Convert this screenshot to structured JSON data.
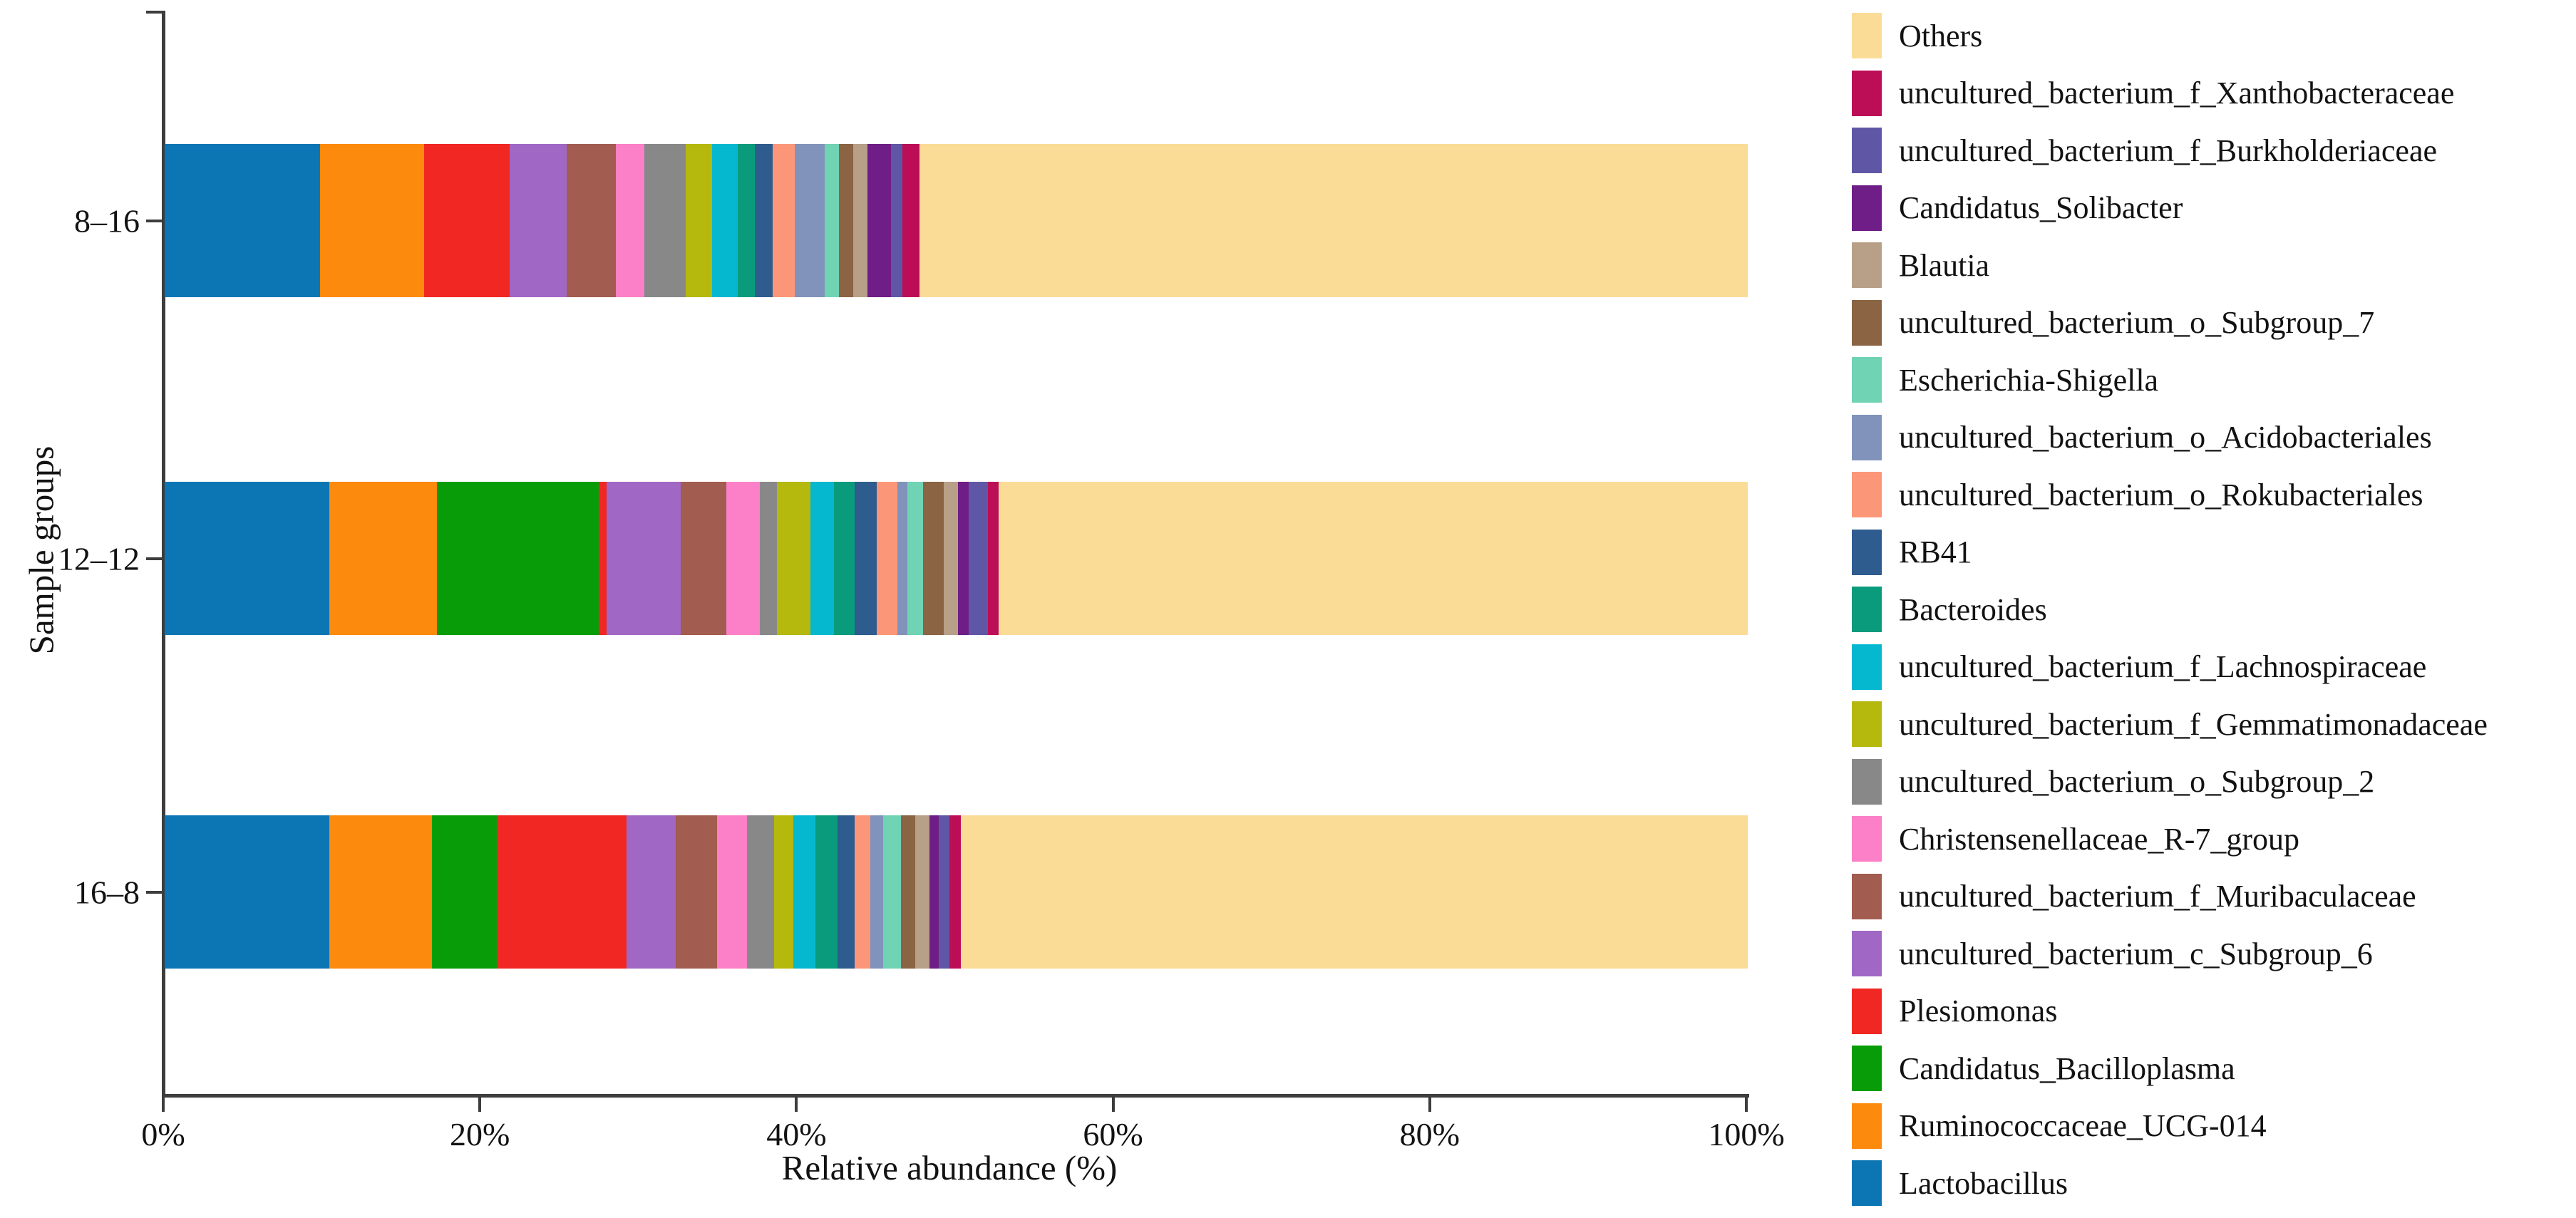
{
  "figure": {
    "background": "#ffffff",
    "text_color": "#121212",
    "axis_color": "#3d3d3d"
  },
  "chart_data": {
    "type": "bar",
    "orientation": "horizontal-stacked",
    "title": "",
    "xlabel": "Relative abundance (%)",
    "ylabel": "Sample groups",
    "xlim": [
      0,
      100
    ],
    "x_ticks": [
      "0%",
      "20%",
      "40%",
      "60%",
      "80%",
      "100%"
    ],
    "grid": false,
    "legend_position": "right",
    "legend_order": "reverse-of-stacking (Others at top, Lactobacillus at bottom)",
    "categories": [
      "8–16",
      "12–12",
      "16–8"
    ],
    "series": [
      {
        "name": "Lactobacillus",
        "color": "#0B76B3",
        "values": [
          9.8,
          10.4,
          10.4
        ]
      },
      {
        "name": "Ruminococcaceae_UCG-014",
        "color": "#FC8A0D",
        "values": [
          6.6,
          6.8,
          6.5
        ]
      },
      {
        "name": "Candidatus_Bacilloplasma",
        "color": "#089D08",
        "values": [
          0,
          10.2,
          4.1
        ]
      },
      {
        "name": "Plesiomonas",
        "color": "#F02723",
        "values": [
          5.4,
          0.5,
          8.2
        ]
      },
      {
        "name": "uncultured_bacterium_c_Subgroup_6",
        "color": "#A067C4",
        "values": [
          3.6,
          4.7,
          3.1
        ]
      },
      {
        "name": "uncultured_bacterium_f_Muribaculaceae",
        "color": "#A25C50",
        "values": [
          3.1,
          2.9,
          2.6
        ]
      },
      {
        "name": "Christensenellaceae_R-7_group",
        "color": "#FB80C8",
        "values": [
          1.8,
          2.1,
          1.9
        ]
      },
      {
        "name": "uncultured_bacterium_o_Subgroup_2",
        "color": "#888888",
        "values": [
          2.6,
          1.1,
          1.7
        ]
      },
      {
        "name": "uncultured_bacterium_f_Gemmatimonadaceae",
        "color": "#B5B80D",
        "values": [
          1.7,
          2.1,
          1.2
        ]
      },
      {
        "name": "uncultured_bacterium_f_Lachnospiraceae",
        "color": "#06B8CF",
        "values": [
          1.6,
          1.5,
          1.4
        ]
      },
      {
        "name": "Bacteroides",
        "color": "#0A9B7D",
        "values": [
          1.1,
          1.3,
          1.4
        ]
      },
      {
        "name": "RB41",
        "color": "#2E5C8F",
        "values": [
          1.1,
          1.4,
          1.1
        ]
      },
      {
        "name": "uncultured_bacterium_o_Rokubacteriales",
        "color": "#FB9778",
        "values": [
          1.4,
          1.3,
          1.0
        ]
      },
      {
        "name": "uncultured_bacterium_o_Acidobacteriales",
        "color": "#8193BB",
        "values": [
          1.9,
          0.6,
          0.8
        ]
      },
      {
        "name": "Escherichia-Shigella",
        "color": "#6FD3B4",
        "values": [
          0.9,
          1.0,
          1.1
        ]
      },
      {
        "name": "uncultured_bacterium_o_Subgroup_7",
        "color": "#8A6443",
        "values": [
          0.9,
          1.3,
          0.9
        ]
      },
      {
        "name": "Blautia",
        "color": "#B7A087",
        "values": [
          0.9,
          0.9,
          0.9
        ]
      },
      {
        "name": "Candidatus_Solibacter",
        "color": "#6E1E86",
        "values": [
          1.5,
          0.7,
          0.6
        ]
      },
      {
        "name": "uncultured_bacterium_f_Burkholderiaceae",
        "color": "#5F57A5",
        "values": [
          0.7,
          1.2,
          0.7
        ]
      },
      {
        "name": "uncultured_bacterium_f_Xanthobacteraceae",
        "color": "#BC0D57",
        "values": [
          1.1,
          0.7,
          0.7
        ]
      },
      {
        "name": "Others",
        "color": "#FBDC97",
        "values": [
          52.3,
          47.3,
          49.7
        ]
      }
    ]
  }
}
